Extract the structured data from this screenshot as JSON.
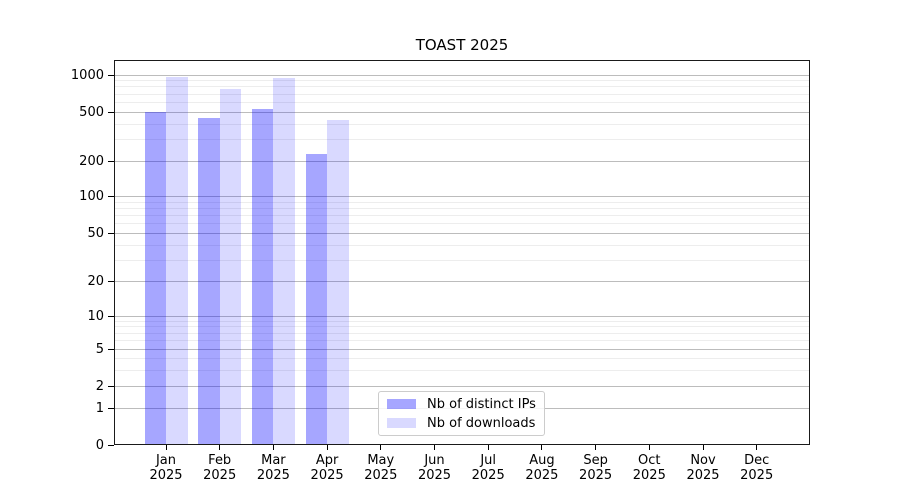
{
  "title": "TOAST 2025",
  "chart_data": {
    "type": "bar",
    "title": "TOAST 2025",
    "categories": [
      "Jan 2025",
      "Feb 2025",
      "Mar 2025",
      "Apr 2025",
      "May 2025",
      "Jun 2025",
      "Jul 2025",
      "Aug 2025",
      "Sep 2025",
      "Oct 2025",
      "Nov 2025",
      "Dec 2025"
    ],
    "series": [
      {
        "name": "Nb of distinct IPs",
        "color": "rgba(0,0,255,0.35)",
        "values": [
          500,
          445,
          530,
          230,
          null,
          null,
          null,
          null,
          null,
          null,
          null,
          null
        ]
      },
      {
        "name": "Nb of downloads",
        "color": "rgba(0,0,255,0.15)",
        "values": [
          955,
          765,
          940,
          435,
          null,
          null,
          null,
          null,
          null,
          null,
          null,
          null
        ]
      }
    ],
    "xlabel": "",
    "ylabel": "",
    "yscale": "symlog",
    "y_ticks": [
      0,
      1,
      2,
      5,
      10,
      20,
      50,
      100,
      200,
      500,
      1000
    ],
    "y_minor_ticks": [
      3,
      4,
      6,
      7,
      8,
      9,
      30,
      40,
      60,
      70,
      80,
      90,
      300,
      400,
      600,
      700,
      800,
      900
    ],
    "ylim": [
      0,
      1300
    ],
    "grid": "horizontal major+minor",
    "legend_position": "lower center inside"
  }
}
